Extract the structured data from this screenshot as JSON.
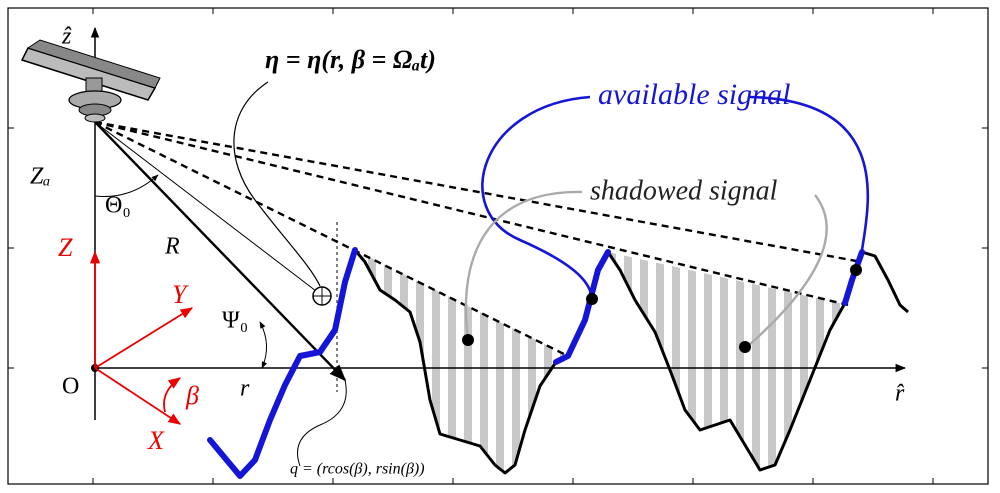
{
  "labels": {
    "z_axis": "ẑ",
    "eta": "η = η(r, β = Ωₐt)",
    "available": "available signal",
    "shadowed": "shadowed signal",
    "za": "Zₐ",
    "theta0": "Θ₀",
    "R": "R",
    "Z": "Z",
    "Y": "Y",
    "psi0": "Ψ₀",
    "O": "O",
    "beta": "β",
    "r": "r",
    "X": "X",
    "r_axis": "r̂",
    "q": "q = (rcos(β), rsin(β))"
  }
}
